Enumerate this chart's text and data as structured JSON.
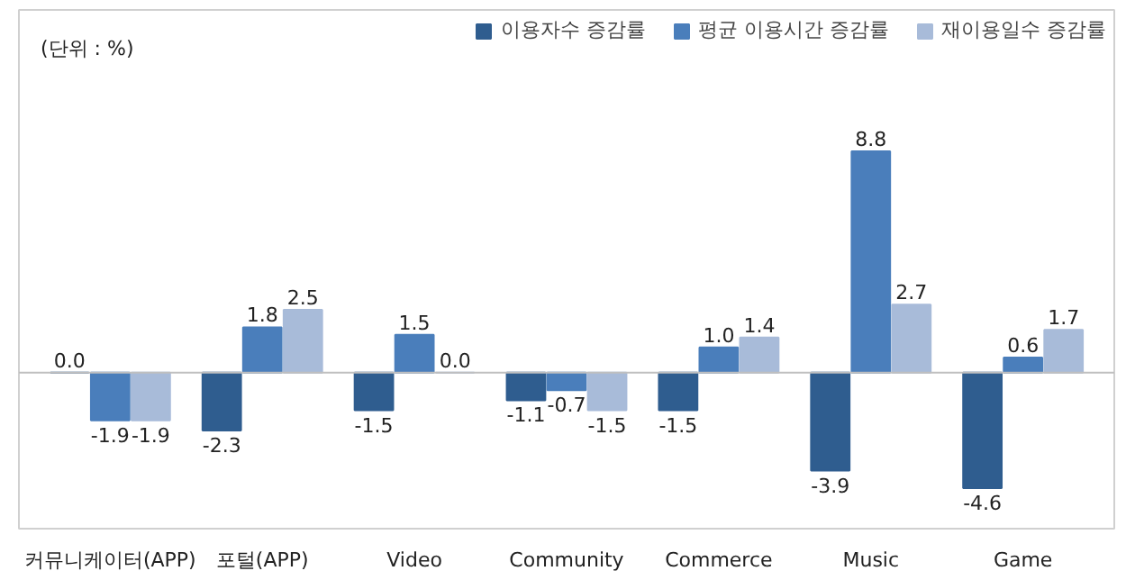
{
  "chart_data": {
    "type": "bar",
    "categories": [
      "커뮤니케이터(APP)",
      "포털(APP)",
      "Video",
      "Community",
      "Commerce",
      "Music",
      "Game"
    ],
    "series": [
      {
        "name": "이용자수 증감률",
        "color": "#2f5d8f",
        "values": [
          0.0,
          -2.3,
          -1.5,
          -1.1,
          -1.5,
          -3.9,
          -4.6
        ],
        "value_labels": [
          "0.0",
          "-2.3",
          "-1.5",
          "-1.1",
          "-1.5",
          "-3.9",
          "-4.6"
        ]
      },
      {
        "name": "평균 이용시간 증감률",
        "color": "#4a7ebb",
        "values": [
          -1.9,
          1.8,
          1.5,
          -0.7,
          1.0,
          8.8,
          0.6
        ],
        "value_labels": [
          "-1.9",
          "1.8",
          "1.5",
          "-0.7",
          "1.0",
          "8.8",
          "0.6"
        ]
      },
      {
        "name": "재이용일수 증감률",
        "color": "#a8bbd9",
        "values": [
          -1.9,
          2.5,
          0.0,
          -1.5,
          1.4,
          2.7,
          1.7
        ],
        "value_labels": [
          "-1.9",
          "2.5",
          "0.0",
          "-1.5",
          "1.4",
          "2.7",
          "1.7"
        ]
      }
    ],
    "annotations": [
      "(단위 : %)"
    ],
    "legend": "top right",
    "grid": false
  }
}
